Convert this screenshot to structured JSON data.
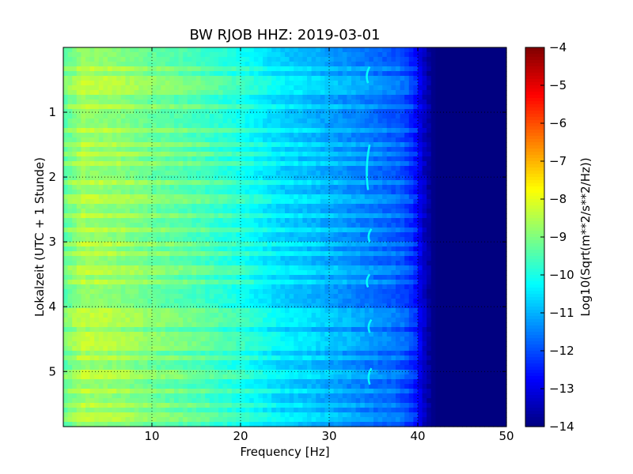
{
  "chart_data": {
    "type": "heatmap",
    "title": "BW RJOB HHZ: 2019-03-01",
    "xlabel": "Frequency [Hz]",
    "ylabel": "Lokalzeit (UTC + 1 Stunde)",
    "xlim": [
      0,
      50
    ],
    "ylim": [
      5.85,
      0
    ],
    "x_ticks": [
      10,
      20,
      30,
      40,
      50
    ],
    "x_tick_labels": [
      "10",
      "20",
      "30",
      "40",
      "50"
    ],
    "y_ticks": [
      1,
      2,
      3,
      4,
      5
    ],
    "y_tick_labels": [
      "1",
      "2",
      "3",
      "4",
      "5"
    ],
    "grid": true,
    "colorscale": "jet",
    "colorbar": {
      "label": "Log10(Sqrt(m**2/s**2/Hz))",
      "range": [
        -14,
        -4
      ],
      "ticks": [
        -4,
        -5,
        -6,
        -7,
        -8,
        -9,
        -10,
        -11,
        -12,
        -13,
        -14
      ],
      "tick_labels": [
        "−4",
        "−5",
        "−6",
        "−7",
        "−8",
        "−9",
        "−10",
        "−11",
        "−12",
        "−13",
        "−14"
      ]
    },
    "frequency_profile": {
      "frequency_hz": [
        0,
        2,
        5,
        8,
        10,
        12,
        15,
        18,
        20,
        22,
        25,
        28,
        30,
        32,
        34,
        36,
        38,
        39,
        40,
        41,
        42,
        45,
        50
      ],
      "log_amplitude": [
        -9.5,
        -8.8,
        -8.9,
        -9.1,
        -9.3,
        -9.4,
        -9.6,
        -9.9,
        -10.1,
        -10.4,
        -10.8,
        -11.0,
        -11.2,
        -11.4,
        -11.6,
        -11.8,
        -12.0,
        -12.3,
        -12.8,
        -13.6,
        -14.0,
        -14.0,
        -14.0
      ]
    },
    "features": [
      {
        "type": "band",
        "time_h": [
          0.35,
          0.5,
          0.65,
          0.9,
          1.3,
          1.5,
          1.65,
          1.8,
          2.1,
          2.35,
          2.6,
          2.8,
          3.05,
          3.2,
          3.45,
          3.6,
          4.1,
          4.25,
          4.45,
          4.6,
          4.8,
          5.05,
          5.3,
          5.5,
          5.7
        ],
        "log_amplitude_delta": 0.5
      },
      {
        "type": "arc",
        "frequency_hz": 34.3,
        "time_h": [
          0.3,
          0.55
        ],
        "log_amplitude": -10.2
      },
      {
        "type": "arc",
        "frequency_hz": 34.3,
        "time_h": [
          1.5,
          2.2
        ],
        "log_amplitude": -10.2
      },
      {
        "type": "arc",
        "frequency_hz": 34.5,
        "time_h": [
          2.8,
          3.0
        ],
        "log_amplitude": -10.2
      },
      {
        "type": "arc",
        "frequency_hz": 34.3,
        "time_h": [
          3.5,
          3.7
        ],
        "log_amplitude": -10.2
      },
      {
        "type": "arc",
        "frequency_hz": 34.5,
        "time_h": [
          4.2,
          4.4
        ],
        "log_amplitude": -10.2
      },
      {
        "type": "arc",
        "frequency_hz": 34.5,
        "time_h": [
          4.95,
          5.2
        ],
        "log_amplitude": -10.2
      }
    ]
  }
}
